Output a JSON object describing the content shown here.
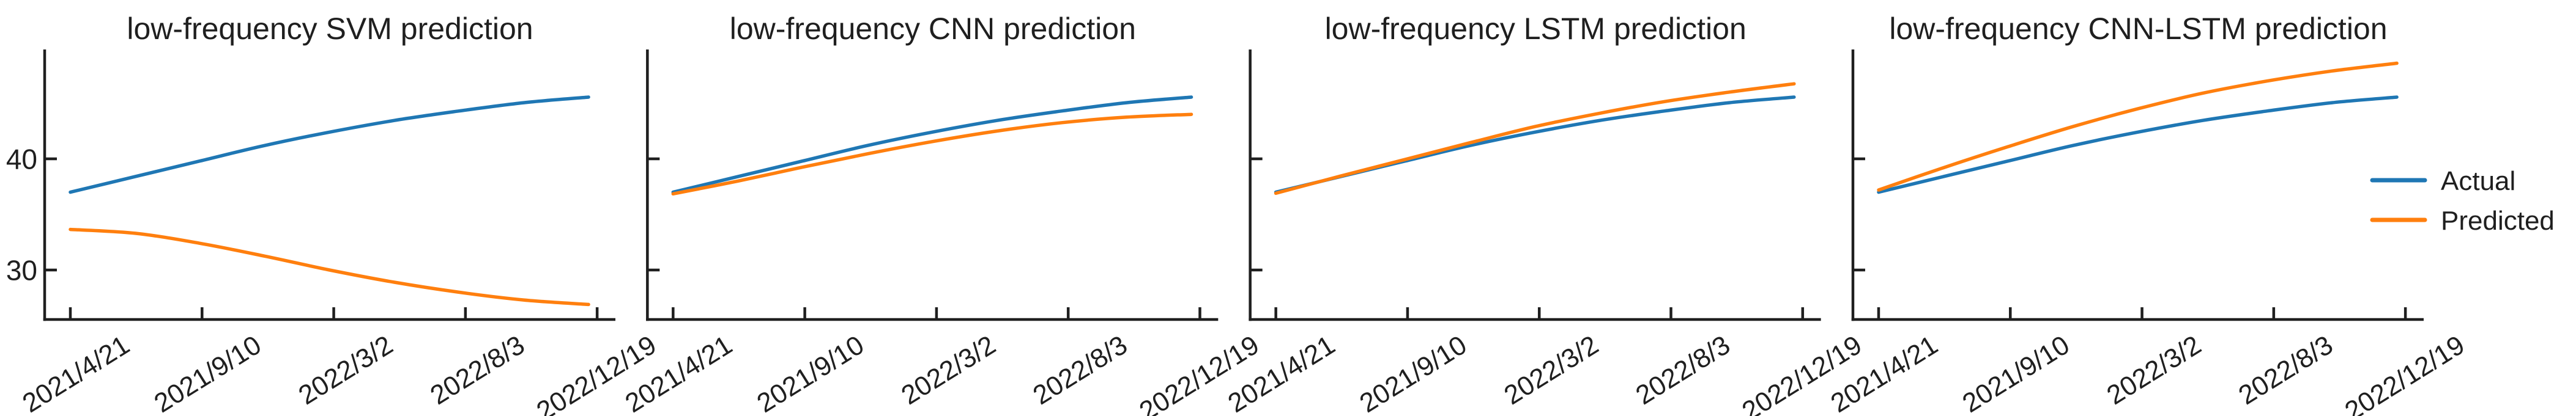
{
  "figure_colors": {
    "axis": "#1f1f1f",
    "text": "#1f1f1f",
    "background": "#ffffff"
  },
  "chart_data": {
    "type": "line",
    "x_axis_note": "dates from 2021/4/21 to 2022/12/19",
    "ylim": [
      25.5,
      49.8
    ],
    "legend": {
      "position": "right-of-last-panel",
      "items": [
        {
          "label": "Actual",
          "color": "#1f77b4"
        },
        {
          "label": "Predicted",
          "color": "#ff7f0e"
        }
      ]
    },
    "panels": [
      {
        "title": "low-frequency SVM prediction",
        "x_tick_labels": [
          "2021/4/21",
          "2021/9/10",
          "2022/3/2",
          "2022/8/3",
          "2022/12/19"
        ],
        "y_ticks": [
          {
            "value": 40,
            "label": "40"
          },
          {
            "value": 30,
            "label": "30"
          }
        ],
        "show_y_tick_labels": true,
        "series": [
          {
            "name": "Actual",
            "color": "#1f77b4",
            "values": [
              37.0,
              38.4,
              39.8,
              41.2,
              42.4,
              43.45,
              44.3,
              45.05,
              45.55
            ]
          },
          {
            "name": "Predicted",
            "color": "#ff7f0e",
            "values": [
              33.65,
              33.3,
              32.4,
              31.25,
              30.0,
              28.9,
              28.0,
              27.3,
              26.9
            ]
          }
        ]
      },
      {
        "title": "low-frequency CNN prediction",
        "x_tick_labels": [
          "2021/4/21",
          "2021/9/10",
          "2022/3/2",
          "2022/8/3",
          "2022/12/19"
        ],
        "y_ticks": [
          {
            "value": 40,
            "label": "40"
          },
          {
            "value": 30,
            "label": "30"
          }
        ],
        "show_y_tick_labels": false,
        "series": [
          {
            "name": "Actual",
            "color": "#1f77b4",
            "values": [
              37.0,
              38.4,
              39.8,
              41.2,
              42.4,
              43.45,
              44.3,
              45.05,
              45.55
            ]
          },
          {
            "name": "Predicted",
            "color": "#ff7f0e",
            "values": [
              36.85,
              38.0,
              39.25,
              40.45,
              41.55,
              42.5,
              43.25,
              43.75,
              44.0
            ]
          }
        ]
      },
      {
        "title": "low-frequency LSTM prediction",
        "x_tick_labels": [
          "2021/4/21",
          "2021/9/10",
          "2022/3/2",
          "2022/8/3",
          "2022/12/19"
        ],
        "y_ticks": [
          {
            "value": 40,
            "label": "40"
          },
          {
            "value": 30,
            "label": "30"
          }
        ],
        "show_y_tick_labels": false,
        "series": [
          {
            "name": "Actual",
            "color": "#1f77b4",
            "values": [
              37.0,
              38.4,
              39.8,
              41.2,
              42.4,
              43.45,
              44.3,
              45.05,
              45.55
            ]
          },
          {
            "name": "Predicted",
            "color": "#ff7f0e",
            "values": [
              36.9,
              38.45,
              39.95,
              41.45,
              42.9,
              44.1,
              45.15,
              46.0,
              46.75
            ]
          }
        ]
      },
      {
        "title": "low-frequency CNN-LSTM prediction",
        "x_tick_labels": [
          "2021/4/21",
          "2021/9/10",
          "2022/3/2",
          "2022/8/3",
          "2022/12/19"
        ],
        "y_ticks": [
          {
            "value": 40,
            "label": "40"
          },
          {
            "value": 30,
            "label": "30"
          }
        ],
        "show_y_tick_labels": false,
        "series": [
          {
            "name": "Actual",
            "color": "#1f77b4",
            "values": [
              37.0,
              38.4,
              39.8,
              41.2,
              42.4,
              43.45,
              44.3,
              45.05,
              45.55
            ]
          },
          {
            "name": "Predicted",
            "color": "#ff7f0e",
            "values": [
              37.2,
              39.2,
              41.1,
              42.9,
              44.5,
              45.9,
              47.0,
              47.9,
              48.6
            ]
          }
        ]
      }
    ]
  }
}
